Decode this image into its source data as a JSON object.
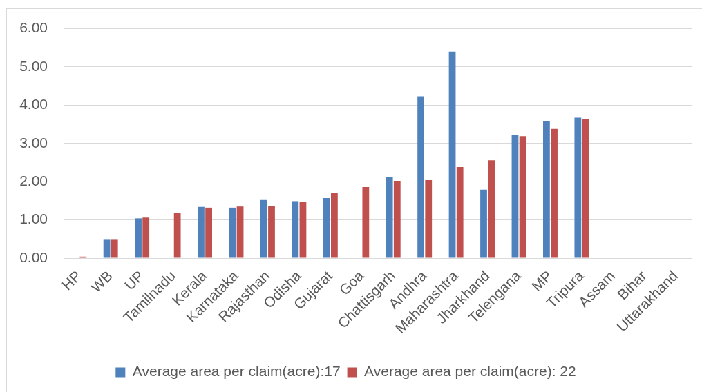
{
  "chart_data": {
    "type": "bar",
    "categories": [
      "HP",
      "WB",
      "UP",
      "Tamilnadu",
      "Kerala",
      "Karnataka",
      "Rajasthan",
      "Odisha",
      "Gujarat",
      "Goa",
      "Chattisgarh",
      "Andhra",
      "Maharashtra",
      "Jharkhand",
      "Telengana",
      "MP",
      "Tripura",
      "Assam",
      "Bihar",
      "Uttarakhand"
    ],
    "series": [
      {
        "name": "Average area per claim(acre):17",
        "color": "#4f81bd",
        "values": [
          null,
          0.48,
          1.04,
          null,
          1.34,
          1.32,
          1.52,
          1.49,
          1.57,
          null,
          2.12,
          4.23,
          5.4,
          1.79,
          3.21,
          3.59,
          3.67,
          null,
          null,
          null
        ]
      },
      {
        "name": "Average area per claim(acre): 22",
        "color": "#c0504d",
        "values": [
          0.04,
          0.48,
          1.06,
          1.18,
          1.32,
          1.35,
          1.37,
          1.47,
          1.71,
          1.86,
          2.02,
          2.04,
          2.38,
          2.56,
          3.19,
          3.38,
          3.63,
          null,
          null,
          null
        ]
      }
    ],
    "ylim": [
      0,
      6
    ],
    "yticks": [
      {
        "value": 0,
        "label": "0.00"
      },
      {
        "value": 1,
        "label": "1.00"
      },
      {
        "value": 2,
        "label": "2.00"
      },
      {
        "value": 3,
        "label": "3.00"
      },
      {
        "value": 4,
        "label": "4.00"
      },
      {
        "value": 5,
        "label": "5.00"
      },
      {
        "value": 6,
        "label": "6.00"
      }
    ],
    "grid": "y",
    "legend": "bottom"
  }
}
